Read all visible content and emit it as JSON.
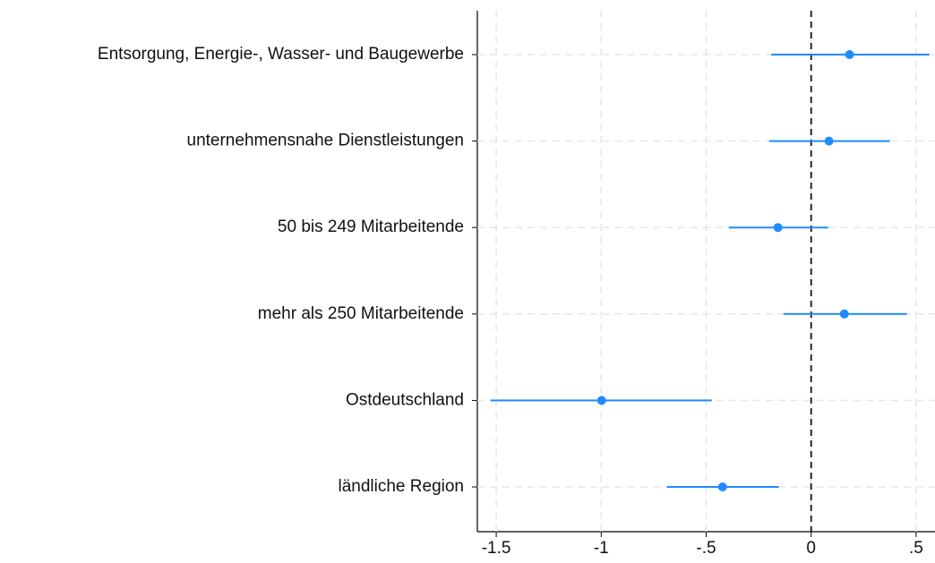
{
  "chart_data": {
    "type": "coefplot",
    "categories": [
      "Entsorgung, Energie-, Wasser- und Baugewerbe",
      "unternehmensnahe Dienstleistungen",
      "50 bis 249 Mitarbeitende",
      "mehr als 250 Mitarbeitende",
      "Ostdeutschland",
      "ländliche Region"
    ],
    "values": [
      0.183,
      0.085,
      -0.158,
      0.158,
      -0.998,
      -0.422
    ],
    "ci_low": [
      -0.19,
      -0.2,
      -0.392,
      -0.132,
      -1.527,
      -0.687
    ],
    "ci_high": [
      0.563,
      0.375,
      0.081,
      0.456,
      -0.473,
      -0.154
    ],
    "color": "#1f8bff",
    "xlim": [
      -1.59,
      0.59
    ],
    "xticks": [
      -1.5,
      -1,
      {
        "value": -0.5,
        "label": "-.5"
      },
      0,
      {
        "value": 0.5,
        "label": ".5"
      }
    ],
    "xline": 0,
    "grid": true
  }
}
